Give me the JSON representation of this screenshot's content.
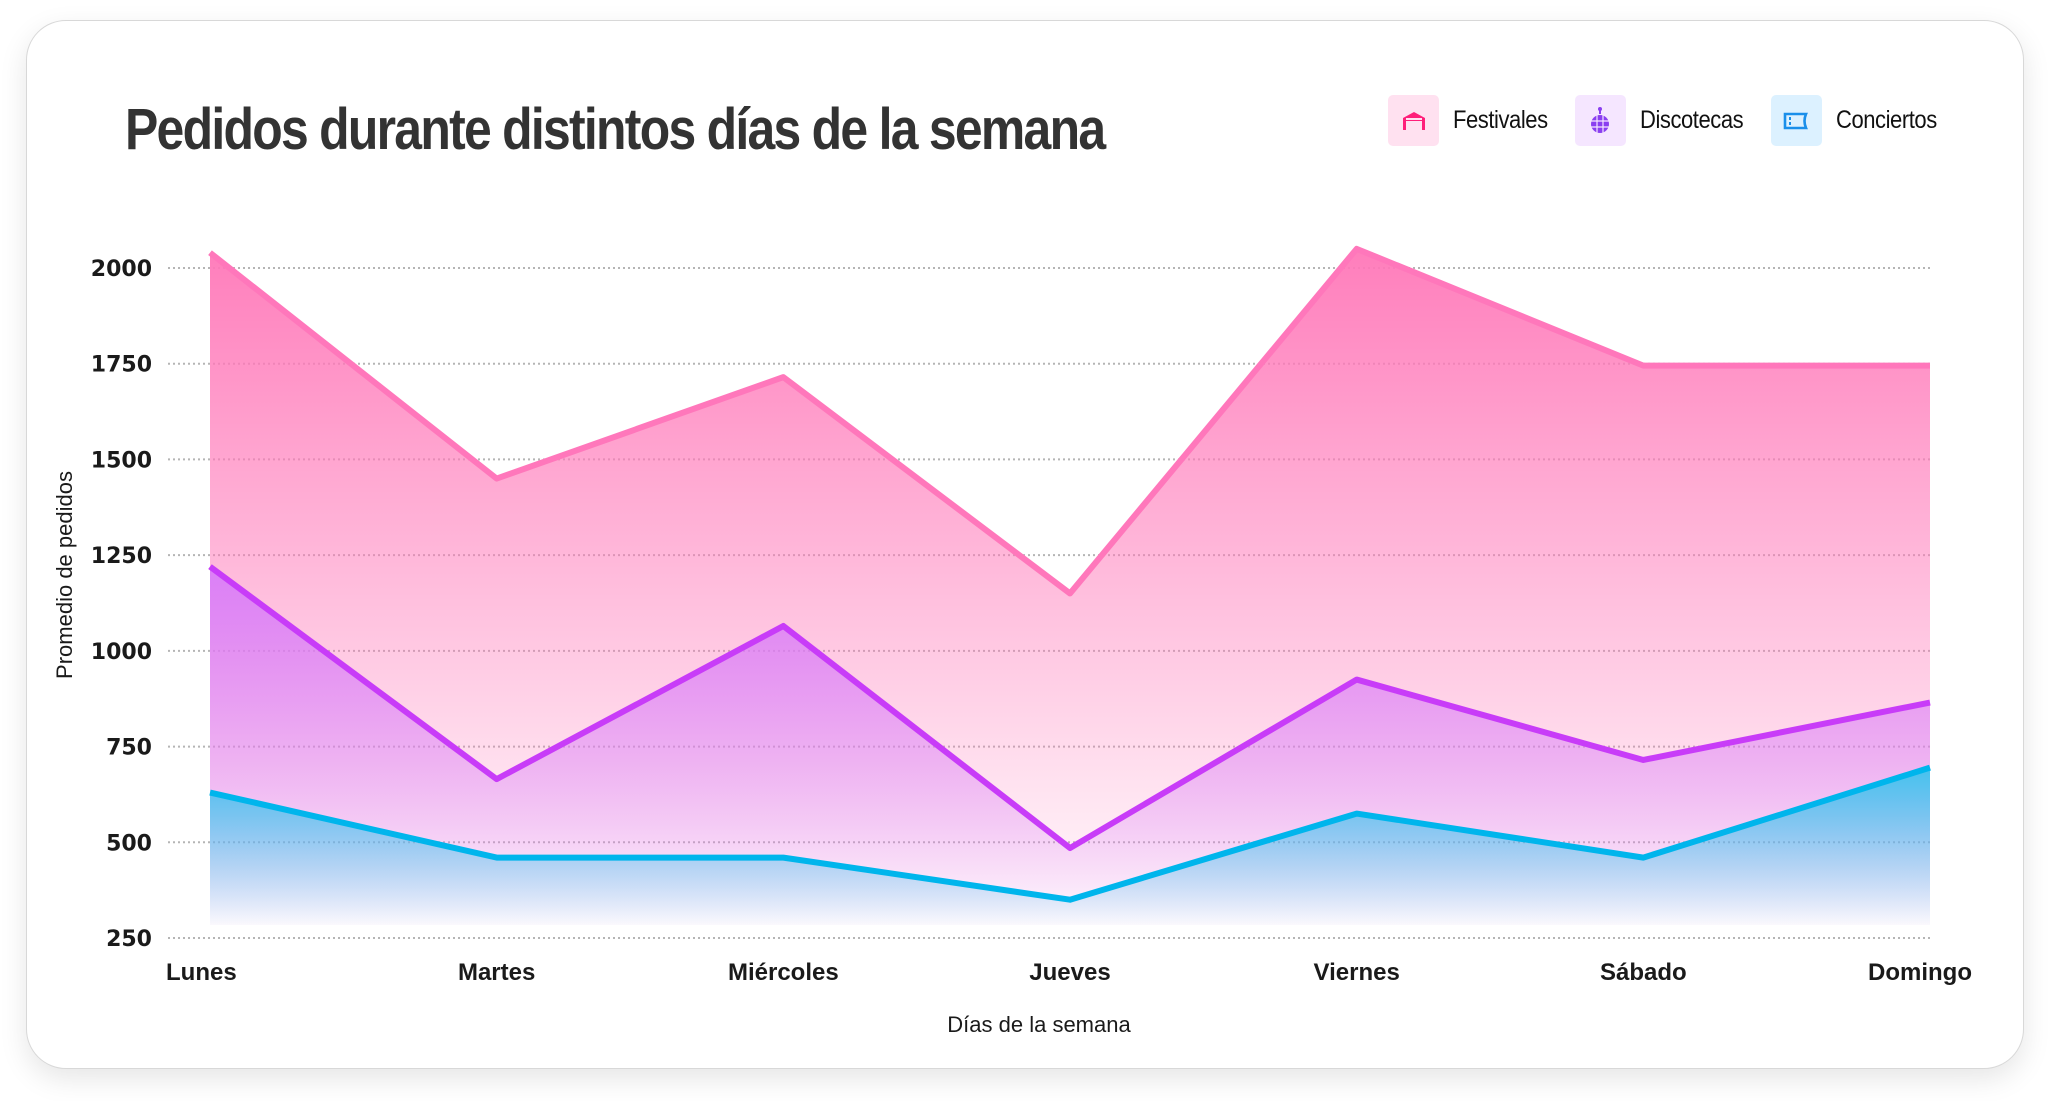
{
  "chart_data": {
    "type": "area",
    "title": "Pedidos durante distintos días de la semana",
    "xlabel": "Días de la semana",
    "ylabel": "Promedio de pedidos",
    "categories": [
      "Lunes",
      "Martes",
      "Miércoles",
      "Jueves",
      "Viernes",
      "Sábado",
      "Domingo"
    ],
    "yticks": [
      250,
      500,
      750,
      1000,
      1250,
      1500,
      1750,
      2000
    ],
    "ylim": [
      250,
      2000
    ],
    "grid": true,
    "legend_position": "top-right",
    "series": [
      {
        "name": "Festivales",
        "icon": "tent-icon",
        "color": "#ff77bb",
        "fill_top": "#ff77b8",
        "swatch_bg": "#ffe1f0",
        "icon_color": "#ff1f7a",
        "values": [
          2040,
          1450,
          1715,
          1150,
          2050,
          1745,
          1745
        ]
      },
      {
        "name": "Discotecas",
        "icon": "disco-ball-icon",
        "color": "#c83cf8",
        "fill_top": "#d97cf8",
        "swatch_bg": "#f5e6ff",
        "icon_color": "#8a3ff0",
        "values": [
          1220,
          665,
          1065,
          485,
          925,
          715,
          865
        ]
      },
      {
        "name": "Conciertos",
        "icon": "ticket-icon",
        "color": "#00b5ec",
        "fill_top": "#3cc3ee",
        "swatch_bg": "#dcf1ff",
        "icon_color": "#1a8fea",
        "values": [
          630,
          460,
          460,
          350,
          575,
          460,
          695
        ]
      }
    ]
  }
}
